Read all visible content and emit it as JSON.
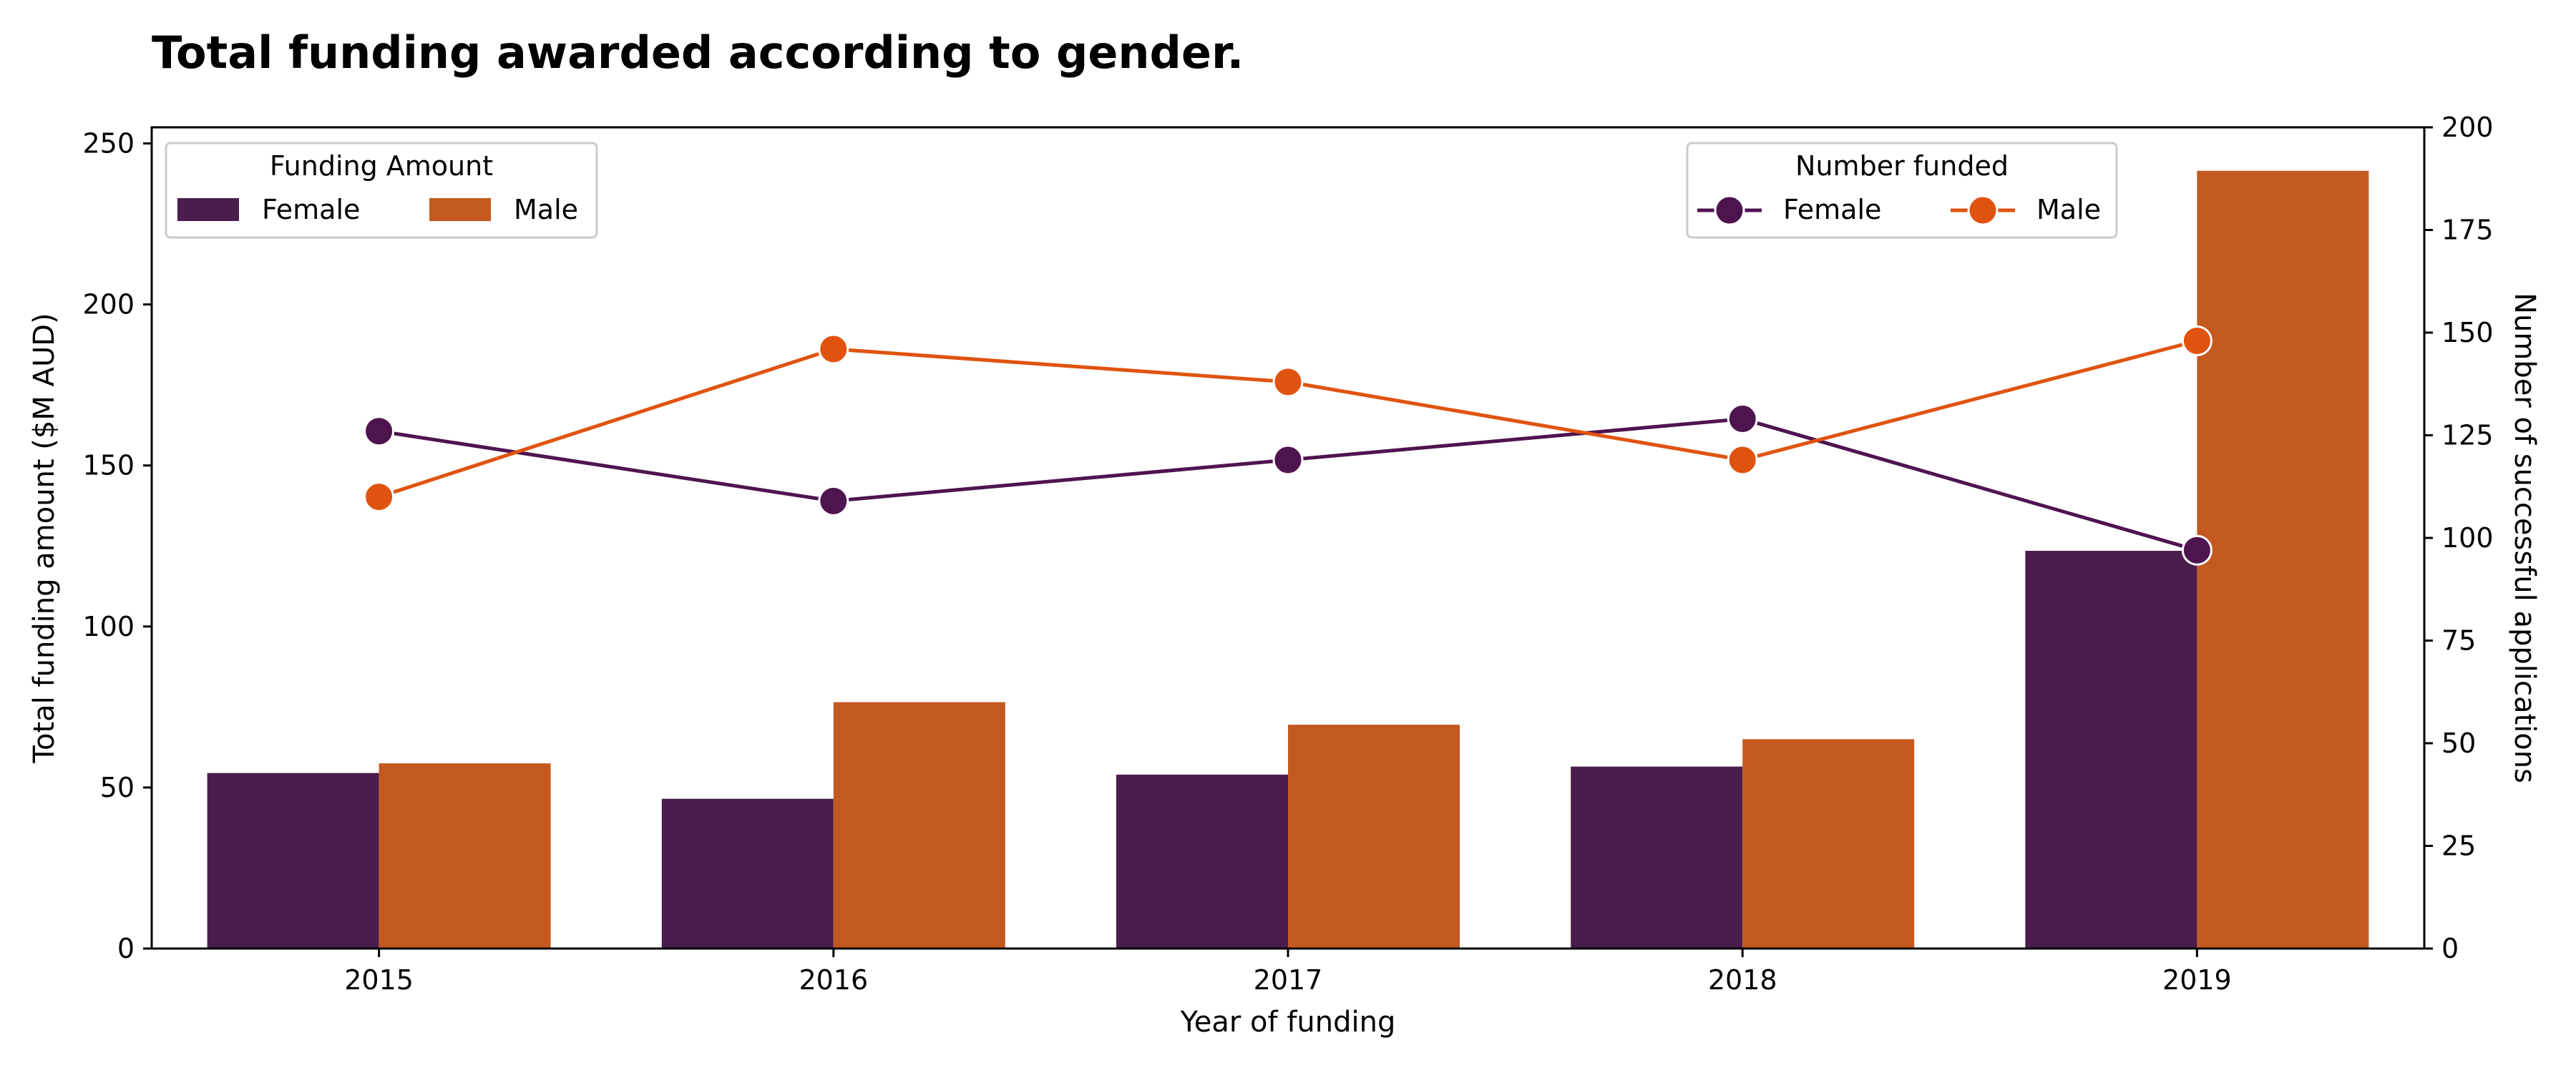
{
  "chart_data": {
    "type": "bar",
    "title": "Total funding awarded according to gender.",
    "xlabel": "Year of funding",
    "ylabel": "Total funding amount ($M AUD)",
    "y2label": "Number of successful applications",
    "categories": [
      "2015",
      "2016",
      "2017",
      "2018",
      "2019"
    ],
    "ylim": [
      0,
      255
    ],
    "yticks": [
      0,
      50,
      100,
      150,
      200,
      250
    ],
    "y2lim": [
      0,
      200
    ],
    "y2ticks": [
      0,
      25,
      50,
      75,
      100,
      125,
      150,
      175,
      200
    ],
    "grid": false,
    "bar_series": [
      {
        "name": "Female",
        "color": "#4a1d4c",
        "values": [
          54.5,
          46.5,
          54,
          56.5,
          123.5
        ]
      },
      {
        "name": "Male",
        "color": "#c45920",
        "values": [
          57.5,
          76.5,
          69.5,
          65,
          241.5
        ]
      }
    ],
    "line_series": [
      {
        "name": "Female",
        "color": "#4e1450",
        "values": [
          126,
          109,
          119,
          129,
          97
        ]
      },
      {
        "name": "Male",
        "color": "#e0530e",
        "values": [
          110,
          146,
          138,
          119,
          148
        ]
      }
    ],
    "legends": [
      {
        "title": "Funding Amount",
        "position": "upper-left",
        "kind": "patch"
      },
      {
        "title": "Number funded",
        "position": "upper-right",
        "kind": "line-marker"
      }
    ]
  }
}
